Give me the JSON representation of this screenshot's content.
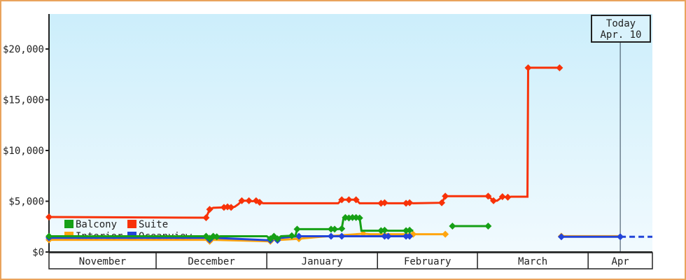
{
  "page": {
    "background": "#ffffff",
    "border_color": "#e9a35c"
  },
  "legend": {
    "rows": [
      [
        "Balcony",
        "Suite"
      ],
      [
        "Interior",
        "Oceanview"
      ]
    ]
  },
  "today_box": {
    "line1": "Today",
    "line2": "Apr. 10"
  },
  "chart_data": {
    "type": "line",
    "description": "Cruise cabin price history by category, November through April, prices in USD",
    "y_axis": {
      "tick_labels": [
        "$0",
        "$5,000",
        "$10,000",
        "$15,000",
        "$20,000"
      ],
      "tick_values": [
        0,
        5000,
        10000,
        15000,
        20000
      ],
      "range": [
        0,
        20000
      ],
      "grid": false
    },
    "x_axis": {
      "months": [
        {
          "label": "November",
          "days": 30
        },
        {
          "label": "December",
          "days": 31
        },
        {
          "label": "January",
          "days": 31
        },
        {
          "label": "February",
          "days": 28
        },
        {
          "label": "March",
          "days": 31
        },
        {
          "label": "Apr",
          "days": 18
        }
      ],
      "total_days": 169
    },
    "today": {
      "label_line1": "Today",
      "label_line2": "Apr. 10",
      "day_index": 160
    },
    "colors": {
      "plot_bg_top": "#cceefb",
      "plot_bg_bottom": "#f1fafe",
      "axis": "#222222",
      "today_line": "#334455",
      "today_box_fill": "#d9f2fc"
    },
    "series": [
      {
        "name": "Balcony",
        "color": "#16a016",
        "z": 4,
        "segments": [
          {
            "points": [
              [
                0,
                1550
              ],
              [
                44,
                1550
              ],
              [
                45,
                1350
              ],
              [
                46,
                1550
              ],
              [
                47,
                1500
              ],
              [
                48,
                1550
              ],
              [
                61,
                1550
              ],
              [
                62,
                1300
              ],
              [
                63,
                1550
              ],
              [
                64,
                1300
              ],
              [
                65,
                1550
              ],
              [
                68,
                1600
              ],
              [
                69,
                1550
              ],
              [
                69.5,
                2250
              ],
              [
                79,
                2250
              ],
              [
                81,
                2250
              ],
              [
                82,
                2300
              ],
              [
                82.5,
                3350
              ],
              [
                83,
                3400
              ],
              [
                86,
                3400
              ],
              [
                87,
                3350
              ],
              [
                87.5,
                2100
              ],
              [
                93,
                2100
              ],
              [
                94,
                2150
              ],
              [
                95,
                2100
              ],
              [
                100,
                2100
              ],
              [
                101,
                2150
              ],
              [
                102,
                2100
              ]
            ],
            "markers": [
              [
                0,
                1550
              ],
              [
                44,
                1550
              ],
              [
                45,
                1350
              ],
              [
                46,
                1550
              ],
              [
                47,
                1500
              ],
              [
                62,
                1300
              ],
              [
                63,
                1550
              ],
              [
                64,
                1300
              ],
              [
                68,
                1600
              ],
              [
                69.5,
                2250
              ],
              [
                79,
                2250
              ],
              [
                80,
                2250
              ],
              [
                82,
                2300
              ],
              [
                83,
                3400
              ],
              [
                84,
                3350
              ],
              [
                85,
                3400
              ],
              [
                86,
                3400
              ],
              [
                87,
                3350
              ],
              [
                93,
                2100
              ],
              [
                94,
                2150
              ],
              [
                100,
                2100
              ],
              [
                101,
                2150
              ]
            ]
          },
          {
            "points": [
              [
                113,
                2550
              ],
              [
                123,
                2550
              ]
            ],
            "markers": [
              [
                113,
                2550
              ],
              [
                123,
                2550
              ]
            ]
          }
        ]
      },
      {
        "name": "Suite",
        "color": "#f83208",
        "z": 3,
        "segments": [
          {
            "points": [
              [
                0,
                3450
              ],
              [
                44,
                3380
              ],
              [
                45,
                4200
              ],
              [
                46,
                4350
              ],
              [
                49,
                4400
              ],
              [
                50,
                4450
              ],
              [
                51,
                4400
              ],
              [
                52,
                4450
              ],
              [
                53,
                4700
              ],
              [
                54,
                5050
              ],
              [
                56,
                5050
              ],
              [
                57,
                5000
              ],
              [
                58,
                5050
              ],
              [
                59,
                4900
              ],
              [
                60,
                4800
              ],
              [
                81,
                4800
              ],
              [
                82,
                5150
              ],
              [
                86,
                5150
              ],
              [
                87,
                4800
              ],
              [
                93,
                4800
              ],
              [
                94,
                4850
              ],
              [
                95,
                4800
              ],
              [
                100,
                4800
              ],
              [
                101,
                4850
              ],
              [
                102,
                4800
              ],
              [
                110,
                4850
              ],
              [
                111,
                5500
              ],
              [
                123,
                5500
              ],
              [
                124.5,
                5050
              ],
              [
                125.5,
                5050
              ],
              [
                127,
                5450
              ],
              [
                128.5,
                5400
              ],
              [
                129.5,
                5450
              ],
              [
                134,
                5450
              ],
              [
                134.2,
                18150
              ],
              [
                143,
                18150
              ]
            ],
            "markers": [
              [
                0,
                3450
              ],
              [
                44,
                3380
              ],
              [
                45,
                4200
              ],
              [
                49,
                4400
              ],
              [
                50,
                4450
              ],
              [
                51,
                4400
              ],
              [
                54,
                5050
              ],
              [
                56,
                5050
              ],
              [
                58,
                5050
              ],
              [
                59,
                4900
              ],
              [
                82,
                5150
              ],
              [
                84,
                5150
              ],
              [
                86,
                5150
              ],
              [
                93,
                4800
              ],
              [
                94,
                4850
              ],
              [
                100,
                4800
              ],
              [
                101,
                4850
              ],
              [
                110,
                4850
              ],
              [
                111,
                5500
              ],
              [
                123,
                5500
              ],
              [
                124.5,
                5050
              ],
              [
                127,
                5450
              ],
              [
                128.5,
                5400
              ],
              [
                134.2,
                18150
              ],
              [
                143,
                18150
              ]
            ]
          }
        ]
      },
      {
        "name": "Interior",
        "color": "#ffa50f",
        "z": 1,
        "segments": [
          {
            "points": [
              [
                0,
                1200
              ],
              [
                44,
                1200
              ],
              [
                45,
                1050
              ],
              [
                46,
                1200
              ],
              [
                62,
                1050
              ],
              [
                63,
                1200
              ],
              [
                65,
                1200
              ],
              [
                70,
                1300
              ],
              [
                76,
                1500
              ],
              [
                88,
                1800
              ],
              [
                90,
                1750
              ],
              [
                102,
                1750
              ],
              [
                111,
                1750
              ]
            ],
            "markers": [
              [
                0,
                1200
              ],
              [
                45,
                1050
              ],
              [
                62,
                1050
              ],
              [
                70,
                1300
              ],
              [
                88,
                1800
              ],
              [
                102,
                1750
              ],
              [
                111,
                1750
              ]
            ]
          },
          {
            "points": [
              [
                143.5,
                1560
              ],
              [
                160,
                1560
              ]
            ],
            "markers": [
              [
                143.5,
                1560
              ]
            ]
          }
        ]
      },
      {
        "name": "Oceanview",
        "color": "#2244d8",
        "z": 2,
        "segments": [
          {
            "points": [
              [
                0,
                1400
              ],
              [
                44,
                1400
              ],
              [
                45,
                1200
              ],
              [
                46,
                1400
              ],
              [
                62,
                1150
              ],
              [
                63,
                1400
              ],
              [
                64,
                1150
              ],
              [
                65,
                1400
              ],
              [
                70,
                1550
              ],
              [
                101,
                1550
              ]
            ],
            "markers": [
              [
                0,
                1400
              ],
              [
                45,
                1200
              ],
              [
                62,
                1150
              ],
              [
                64,
                1150
              ],
              [
                70,
                1550
              ],
              [
                79,
                1550
              ],
              [
                82,
                1550
              ],
              [
                94,
                1550
              ],
              [
                95,
                1550
              ],
              [
                100,
                1550
              ],
              [
                101,
                1550
              ]
            ]
          },
          {
            "points": [
              [
                143.5,
                1500
              ],
              [
                160,
                1500
              ]
            ],
            "markers": [
              [
                143.5,
                1500
              ],
              [
                160,
                1500
              ]
            ]
          },
          {
            "points": [
              [
                160,
                1500
              ],
              [
                169,
                1500
              ]
            ],
            "dashed": true,
            "markers": []
          }
        ]
      }
    ]
  }
}
